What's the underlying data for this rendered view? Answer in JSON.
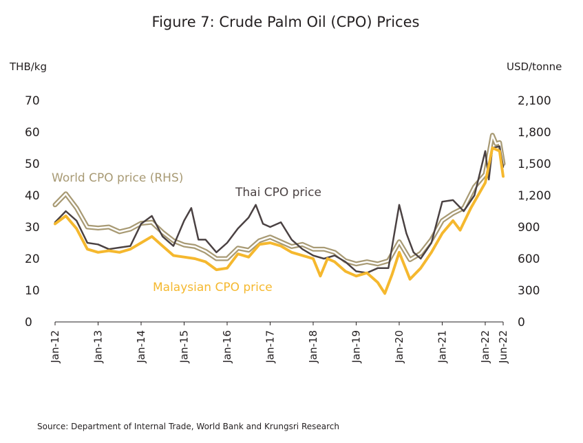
{
  "chart_data": {
    "type": "line",
    "title": "Figure 7: Crude Palm Oil (CPO) Prices",
    "left_axis": {
      "unit_label": "THB/kg",
      "ylim": [
        0,
        70
      ],
      "ticks": [
        "0",
        "10",
        "20",
        "30",
        "40",
        "50",
        "60",
        "70"
      ]
    },
    "right_axis": {
      "unit_label": "USD/tonne",
      "ylim": [
        0,
        2100
      ],
      "ticks": [
        "0",
        "300",
        "600",
        "900",
        "1,200",
        "1,500",
        "1,800",
        "2,100"
      ]
    },
    "x_ticks": [
      "Jan-12",
      "Jan-13",
      "Jan-14",
      "Jan-15",
      "Jan-16",
      "Jan-17",
      "Jan-18",
      "Jan-19",
      "Jan-20",
      "Jan-21",
      "Jan-22",
      "Jun-22"
    ],
    "x_range": [
      "Jan-12",
      "Jun-22"
    ],
    "grid": false,
    "legend": "inline labels",
    "series": [
      {
        "name": "World CPO price (RHS)",
        "axis": "right",
        "color": "#a89a74",
        "points": [
          [
            "2012-01",
            1110
          ],
          [
            "2012-04",
            1215
          ],
          [
            "2012-07",
            1080
          ],
          [
            "2012-10",
            900
          ],
          [
            "2013-01",
            890
          ],
          [
            "2013-04",
            900
          ],
          [
            "2013-07",
            855
          ],
          [
            "2013-10",
            880
          ],
          [
            "2014-01",
            935
          ],
          [
            "2014-04",
            945
          ],
          [
            "2014-07",
            850
          ],
          [
            "2014-10",
            770
          ],
          [
            "2015-01",
            730
          ],
          [
            "2015-04",
            715
          ],
          [
            "2015-07",
            670
          ],
          [
            "2015-10",
            600
          ],
          [
            "2016-01",
            600
          ],
          [
            "2016-04",
            700
          ],
          [
            "2016-07",
            680
          ],
          [
            "2016-10",
            770
          ],
          [
            "2017-01",
            805
          ],
          [
            "2017-04",
            760
          ],
          [
            "2017-07",
            715
          ],
          [
            "2017-10",
            735
          ],
          [
            "2018-01",
            690
          ],
          [
            "2018-04",
            690
          ],
          [
            "2018-07",
            660
          ],
          [
            "2018-10",
            580
          ],
          [
            "2019-01",
            550
          ],
          [
            "2019-04",
            570
          ],
          [
            "2019-07",
            550
          ],
          [
            "2019-10",
            580
          ],
          [
            "2020-01",
            760
          ],
          [
            "2020-04",
            590
          ],
          [
            "2020-07",
            650
          ],
          [
            "2020-10",
            780
          ],
          [
            "2021-01",
            960
          ],
          [
            "2021-04",
            1030
          ],
          [
            "2021-07",
            1080
          ],
          [
            "2021-10",
            1280
          ],
          [
            "2022-01",
            1400
          ],
          [
            "2022-03",
            1770
          ],
          [
            "2022-04",
            1690
          ],
          [
            "2022-05",
            1700
          ],
          [
            "2022-06",
            1500
          ]
        ]
      },
      {
        "name": "Thai CPO price",
        "axis": "left",
        "color": "#4a4142",
        "points": [
          [
            "2012-01",
            31.5
          ],
          [
            "2012-04",
            35
          ],
          [
            "2012-07",
            32
          ],
          [
            "2012-10",
            25
          ],
          [
            "2013-01",
            24.5
          ],
          [
            "2013-04",
            23
          ],
          [
            "2013-07",
            23.5
          ],
          [
            "2013-10",
            24
          ],
          [
            "2014-01",
            31
          ],
          [
            "2014-04",
            33.5
          ],
          [
            "2014-07",
            27
          ],
          [
            "2014-10",
            24
          ],
          [
            "2015-01",
            32
          ],
          [
            "2015-03",
            36
          ],
          [
            "2015-05",
            26
          ],
          [
            "2015-07",
            26
          ],
          [
            "2015-10",
            22
          ],
          [
            "2016-01",
            25
          ],
          [
            "2016-04",
            29.5
          ],
          [
            "2016-07",
            33
          ],
          [
            "2016-09",
            37
          ],
          [
            "2016-11",
            31
          ],
          [
            "2017-01",
            30
          ],
          [
            "2017-04",
            31.5
          ],
          [
            "2017-07",
            26
          ],
          [
            "2017-10",
            23
          ],
          [
            "2018-01",
            21
          ],
          [
            "2018-04",
            20
          ],
          [
            "2018-07",
            21
          ],
          [
            "2018-10",
            19
          ],
          [
            "2019-01",
            16
          ],
          [
            "2019-04",
            15.5
          ],
          [
            "2019-07",
            17
          ],
          [
            "2019-10",
            17
          ],
          [
            "2020-01",
            37
          ],
          [
            "2020-03",
            28
          ],
          [
            "2020-05",
            22
          ],
          [
            "2020-07",
            20
          ],
          [
            "2020-10",
            25
          ],
          [
            "2021-01",
            38
          ],
          [
            "2021-04",
            38.5
          ],
          [
            "2021-07",
            35
          ],
          [
            "2021-10",
            40
          ],
          [
            "2022-01",
            54
          ],
          [
            "2022-02",
            45
          ],
          [
            "2022-03",
            55
          ],
          [
            "2022-05",
            55.5
          ],
          [
            "2022-06",
            49
          ]
        ]
      },
      {
        "name": "Malaysian CPO price",
        "axis": "left",
        "color": "#f5b82e",
        "points": [
          [
            "2012-01",
            31
          ],
          [
            "2012-04",
            33.5
          ],
          [
            "2012-07",
            29.5
          ],
          [
            "2012-10",
            23
          ],
          [
            "2013-01",
            22
          ],
          [
            "2013-04",
            22.5
          ],
          [
            "2013-07",
            22
          ],
          [
            "2013-10",
            23
          ],
          [
            "2014-01",
            25
          ],
          [
            "2014-04",
            27
          ],
          [
            "2014-07",
            24
          ],
          [
            "2014-10",
            21
          ],
          [
            "2015-01",
            20.5
          ],
          [
            "2015-04",
            20
          ],
          [
            "2015-07",
            19
          ],
          [
            "2015-10",
            16.5
          ],
          [
            "2016-01",
            17
          ],
          [
            "2016-04",
            21.5
          ],
          [
            "2016-07",
            20.5
          ],
          [
            "2016-10",
            24.5
          ],
          [
            "2017-01",
            25
          ],
          [
            "2017-04",
            24
          ],
          [
            "2017-07",
            22
          ],
          [
            "2017-10",
            21
          ],
          [
            "2018-01",
            20
          ],
          [
            "2018-03",
            14.5
          ],
          [
            "2018-05",
            20
          ],
          [
            "2018-07",
            19
          ],
          [
            "2018-10",
            16
          ],
          [
            "2019-01",
            14.5
          ],
          [
            "2019-04",
            15.5
          ],
          [
            "2019-07",
            12.5
          ],
          [
            "2019-09",
            9
          ],
          [
            "2019-11",
            15
          ],
          [
            "2020-01",
            22
          ],
          [
            "2020-04",
            13.5
          ],
          [
            "2020-07",
            17
          ],
          [
            "2020-10",
            22
          ],
          [
            "2021-01",
            28
          ],
          [
            "2021-04",
            32
          ],
          [
            "2021-06",
            29
          ],
          [
            "2021-09",
            36
          ],
          [
            "2022-01",
            44
          ],
          [
            "2022-03",
            55
          ],
          [
            "2022-05",
            54
          ],
          [
            "2022-06",
            46
          ]
        ]
      }
    ],
    "source": "Source: Department of Internal Trade, World Bank and Krungsri Research"
  }
}
